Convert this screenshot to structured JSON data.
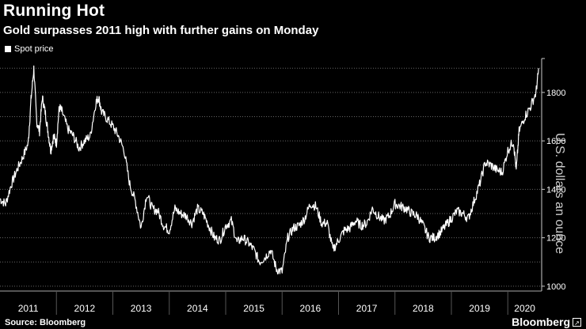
{
  "title": "Running Hot",
  "subtitle": "Gold surpasses 2011 high with further gains on Monday",
  "legend": {
    "label": "Spot price",
    "color": "#ffffff"
  },
  "source": "Source: Bloomberg",
  "brand": "Bloomberg",
  "brand_icon": "external-link-icon",
  "chart_data": {
    "type": "line",
    "title": "Running Hot",
    "subtitle": "Gold surpasses 2011 high with further gains on Monday",
    "xlabel": "",
    "ylabel": "U.S. dollars an ounce",
    "ylim": [
      980,
      1940
    ],
    "xlim": [
      2011.0,
      2020.6
    ],
    "y_ticks": [
      1000,
      1200,
      1400,
      1600,
      1800
    ],
    "x_ticks": [
      "2011",
      "2012",
      "2013",
      "2014",
      "2015",
      "2016",
      "2017",
      "2018",
      "2019",
      "2020"
    ],
    "grid": true,
    "legend_position": "top-left",
    "series": [
      {
        "name": "Spot price",
        "color": "#ffffff",
        "x": [
          2011.0,
          2011.1,
          2011.2,
          2011.3,
          2011.4,
          2011.5,
          2011.55,
          2011.6,
          2011.65,
          2011.7,
          2011.75,
          2011.8,
          2011.85,
          2011.9,
          2011.95,
          2012.0,
          2012.05,
          2012.1,
          2012.2,
          2012.3,
          2012.4,
          2012.5,
          2012.6,
          2012.7,
          2012.75,
          2012.8,
          2012.9,
          2013.0,
          2013.1,
          2013.2,
          2013.3,
          2013.4,
          2013.5,
          2013.6,
          2013.7,
          2013.8,
          2013.9,
          2014.0,
          2014.1,
          2014.2,
          2014.3,
          2014.4,
          2014.5,
          2014.6,
          2014.7,
          2014.8,
          2014.9,
          2015.0,
          2015.1,
          2015.2,
          2015.3,
          2015.4,
          2015.5,
          2015.6,
          2015.7,
          2015.8,
          2015.9,
          2016.0,
          2016.1,
          2016.2,
          2016.3,
          2016.4,
          2016.5,
          2016.6,
          2016.7,
          2016.8,
          2016.9,
          2017.0,
          2017.1,
          2017.2,
          2017.3,
          2017.4,
          2017.5,
          2017.6,
          2017.7,
          2017.8,
          2017.9,
          2018.0,
          2018.1,
          2018.2,
          2018.3,
          2018.4,
          2018.5,
          2018.6,
          2018.7,
          2018.8,
          2018.9,
          2019.0,
          2019.1,
          2019.2,
          2019.3,
          2019.4,
          2019.5,
          2019.6,
          2019.7,
          2019.8,
          2019.9,
          2020.0,
          2020.1,
          2020.15,
          2020.2,
          2020.3,
          2020.4,
          2020.5,
          2020.55
        ],
        "y": [
          1360,
          1340,
          1420,
          1480,
          1530,
          1590,
          1770,
          1900,
          1680,
          1640,
          1780,
          1720,
          1640,
          1560,
          1620,
          1590,
          1740,
          1720,
          1650,
          1620,
          1570,
          1600,
          1620,
          1760,
          1780,
          1720,
          1690,
          1660,
          1620,
          1560,
          1420,
          1350,
          1240,
          1380,
          1320,
          1310,
          1250,
          1230,
          1320,
          1300,
          1290,
          1260,
          1320,
          1300,
          1250,
          1200,
          1190,
          1250,
          1270,
          1180,
          1200,
          1180,
          1150,
          1100,
          1120,
          1150,
          1070,
          1060,
          1200,
          1240,
          1250,
          1280,
          1340,
          1330,
          1260,
          1260,
          1150,
          1190,
          1230,
          1240,
          1270,
          1250,
          1260,
          1320,
          1290,
          1270,
          1290,
          1340,
          1330,
          1320,
          1300,
          1290,
          1250,
          1200,
          1200,
          1220,
          1250,
          1280,
          1310,
          1300,
          1280,
          1350,
          1420,
          1510,
          1500,
          1480,
          1470,
          1560,
          1600,
          1480,
          1640,
          1700,
          1740,
          1800,
          1900
        ]
      }
    ]
  }
}
